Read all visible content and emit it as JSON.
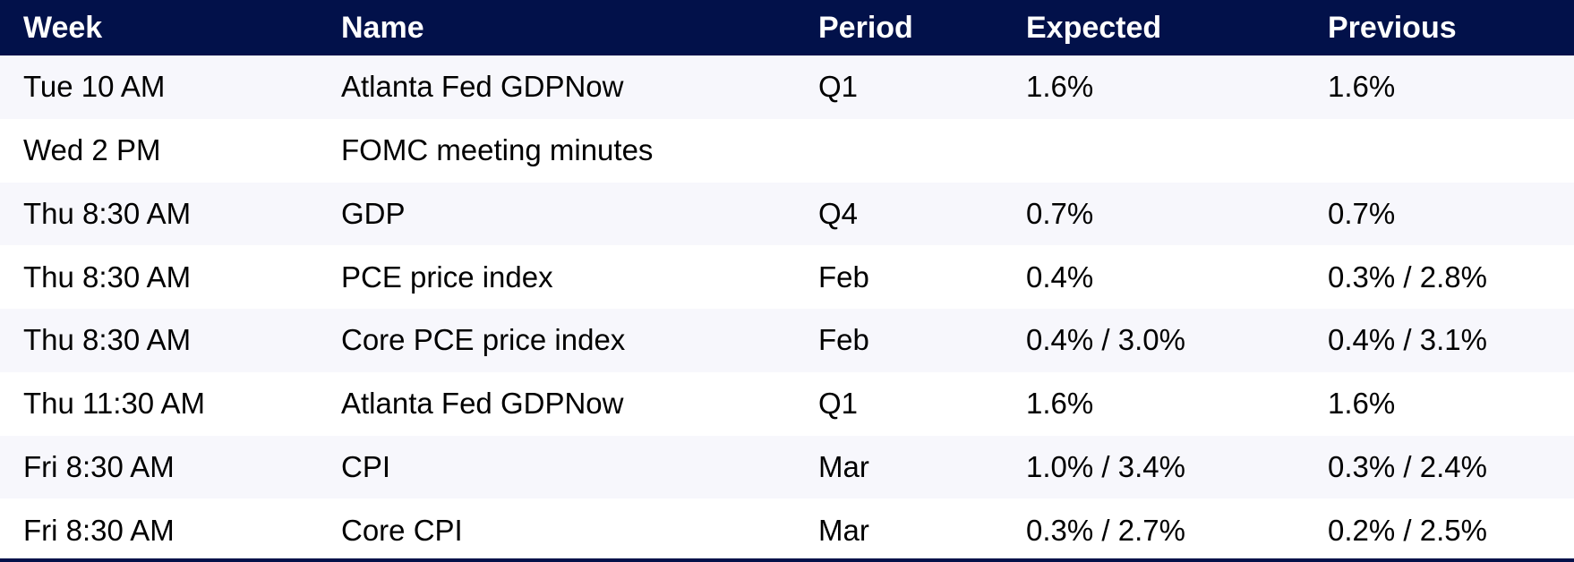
{
  "table": {
    "columns": [
      {
        "key": "week",
        "label": "Week"
      },
      {
        "key": "name",
        "label": "Name"
      },
      {
        "key": "period",
        "label": "Period"
      },
      {
        "key": "expected",
        "label": "Expected"
      },
      {
        "key": "previous",
        "label": "Previous"
      }
    ],
    "rows": [
      {
        "week": "Tue 10 AM",
        "name": "Atlanta Fed GDPNow",
        "period": "Q1",
        "expected": "1.6%",
        "previous": "1.6%"
      },
      {
        "week": "Wed 2 PM",
        "name": "FOMC meeting minutes",
        "period": "",
        "expected": "",
        "previous": ""
      },
      {
        "week": "Thu 8:30 AM",
        "name": "GDP",
        "period": "Q4",
        "expected": "0.7%",
        "previous": "0.7%"
      },
      {
        "week": "Thu 8:30 AM",
        "name": "PCE price index",
        "period": "Feb",
        "expected": "0.4%",
        "previous": "0.3% / 2.8%"
      },
      {
        "week": "Thu 8:30 AM",
        "name": "Core PCE price index",
        "period": "Feb",
        "expected": "0.4% / 3.0%",
        "previous": "0.4% / 3.1%"
      },
      {
        "week": "Thu 11:30 AM",
        "name": "Atlanta Fed GDPNow",
        "period": "Q1",
        "expected": "1.6%",
        "previous": "1.6%"
      },
      {
        "week": "Fri 8:30 AM",
        "name": "CPI",
        "period": "Mar",
        "expected": "1.0% / 3.4%",
        "previous": "0.3% / 2.4%"
      },
      {
        "week": "Fri 8:30 AM",
        "name": "Core CPI",
        "period": "Mar",
        "expected": "0.3% / 2.7%",
        "previous": "0.2% / 2.5%"
      }
    ],
    "colors": {
      "header_bg": "#02114a",
      "header_text": "#ffffff",
      "row_odd_bg": "#f7f7fc",
      "row_even_bg": "#ffffff",
      "body_text": "#000000"
    }
  }
}
